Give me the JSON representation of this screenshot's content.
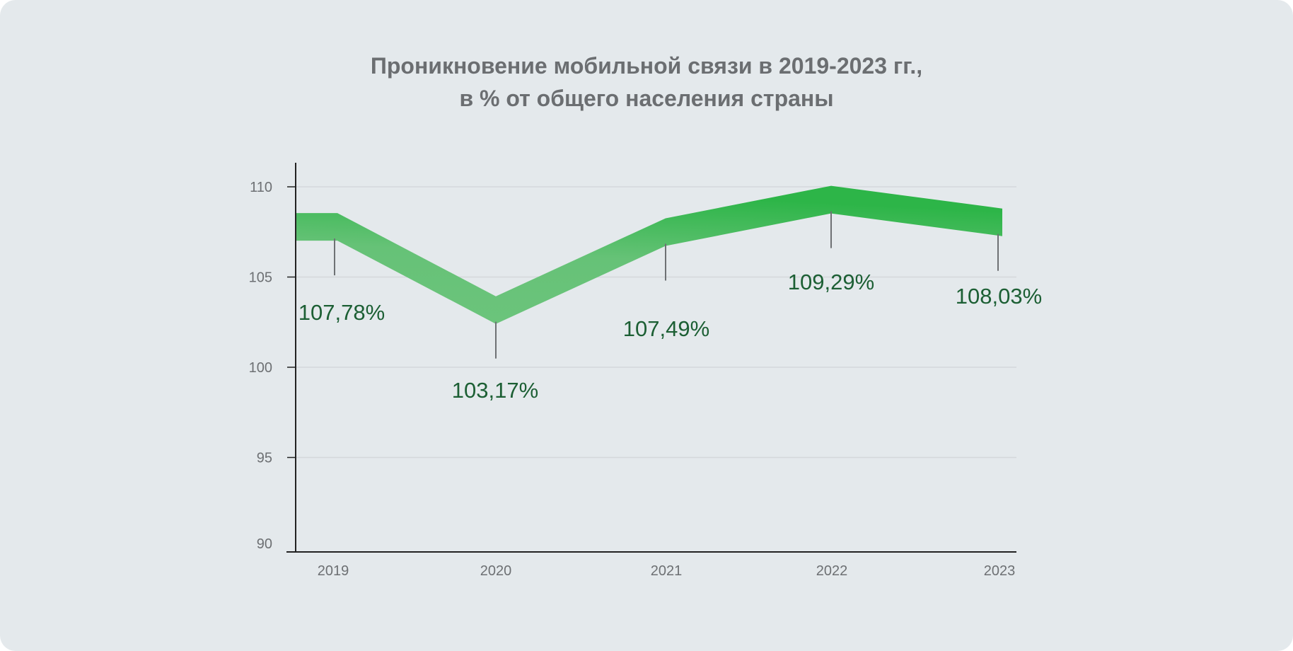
{
  "chart_data": {
    "type": "line",
    "title_line1": "Проникновение мобильной связи в 2019-2023 гг.,",
    "title_line2": "в % от общего населения страны",
    "xlabel": "",
    "ylabel": "",
    "categories": [
      "2019",
      "2020",
      "2021",
      "2022",
      "2023"
    ],
    "values": [
      107.78,
      103.17,
      107.49,
      109.29,
      108.03
    ],
    "data_labels": [
      "107,78%",
      "103,17%",
      "107,49%",
      "109,29%",
      "108,03%"
    ],
    "y_ticks": [
      90,
      95,
      100,
      105,
      110
    ],
    "ylim": [
      90,
      111.4
    ],
    "grid": true,
    "legend": "none",
    "colors": {
      "background": "#e4e9ec",
      "line_light": "#6cc47c",
      "line_dark": "#2db548",
      "label": "#1c5f34",
      "axis": "#222222",
      "grid": "#d4d8db"
    }
  }
}
